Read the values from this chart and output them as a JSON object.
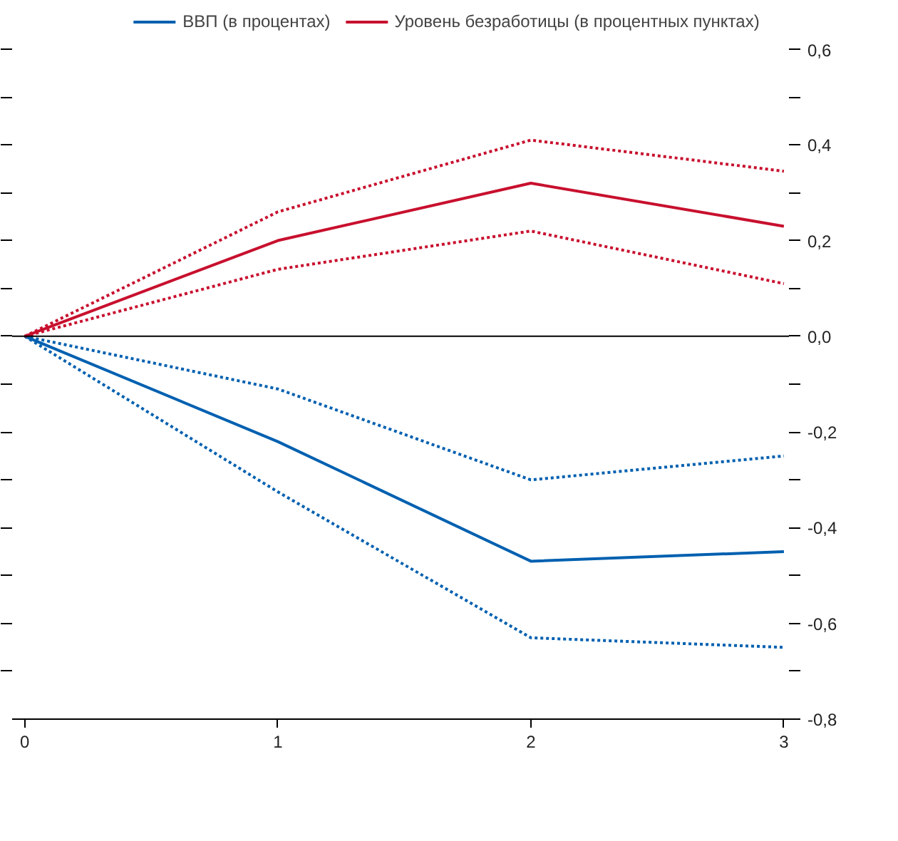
{
  "chart_data": {
    "type": "line",
    "x": [
      0,
      1,
      2,
      3
    ],
    "series": [
      {
        "name": "ВВП (в процентах)",
        "color": "#0060b0",
        "values": [
          0,
          -0.22,
          -0.47,
          -0.45
        ],
        "line_style": "solid"
      },
      {
        "color": "#0060b0",
        "values": [
          0,
          -0.11,
          -0.3,
          -0.25
        ],
        "line_style": "dotted"
      },
      {
        "color": "#0060b0",
        "values": [
          0,
          -0.325,
          -0.63,
          -0.65
        ],
        "line_style": "dotted"
      },
      {
        "name": "Уровень безработицы (в процентных пунктах)",
        "color": "#c8102e",
        "values": [
          0,
          0.2,
          0.32,
          0.23
        ],
        "line_style": "solid"
      },
      {
        "color": "#c8102e",
        "values": [
          0,
          0.26,
          0.41,
          0.345
        ],
        "line_style": "dotted"
      },
      {
        "color": "#c8102e",
        "values": [
          0,
          0.14,
          0.22,
          0.11
        ],
        "line_style": "dotted"
      }
    ],
    "xlim": [
      -0.05,
      3.02
    ],
    "xticks": [
      0,
      1,
      2,
      3
    ],
    "ylim": [
      -0.8,
      0.6
    ],
    "yticks": [
      {
        "value": -0.8,
        "label": "-0,8"
      },
      {
        "value": -0.7,
        "label": null
      },
      {
        "value": -0.6,
        "label": "-0,6"
      },
      {
        "value": -0.5,
        "label": null
      },
      {
        "value": -0.4,
        "label": "-0,4"
      },
      {
        "value": -0.3,
        "label": null
      },
      {
        "value": -0.2,
        "label": "-0,2"
      },
      {
        "value": -0.1,
        "label": null
      },
      {
        "value": 0.0,
        "label": "0,0"
      },
      {
        "value": 0.1,
        "label": null
      },
      {
        "value": 0.2,
        "label": "0,2"
      },
      {
        "value": 0.3,
        "label": null
      },
      {
        "value": 0.4,
        "label": "0,4"
      },
      {
        "value": 0.5,
        "label": null
      },
      {
        "value": 0.6,
        "label": "0,6"
      }
    ],
    "ref_lines": [
      {
        "axis": "y",
        "value": 0,
        "color": "#000000"
      }
    ],
    "grid": false,
    "legend": "top",
    "marker": "none"
  }
}
